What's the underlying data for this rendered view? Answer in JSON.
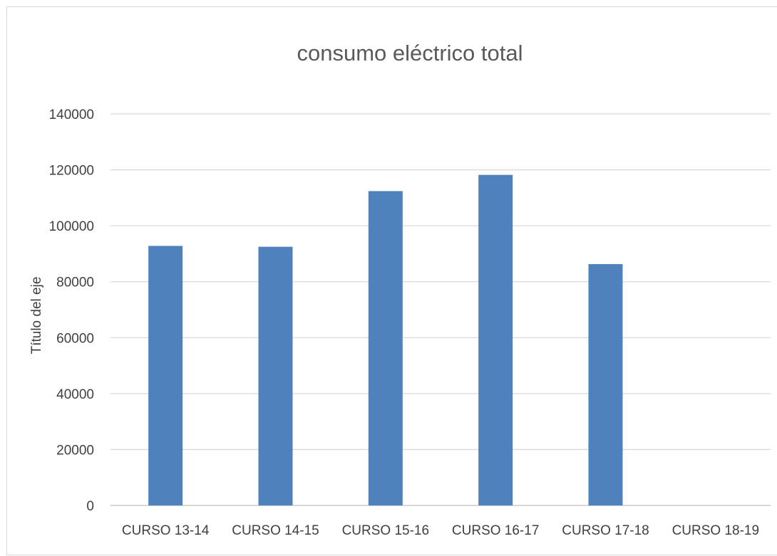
{
  "chart_data": {
    "type": "bar",
    "title": "consumo eléctrico total",
    "xlabel": "",
    "ylabel": "Título del eje",
    "categories": [
      "CURSO 13-14",
      "CURSO 14-15",
      "CURSO 15-16",
      "CURSO 16-17",
      "CURSO 17-18",
      "CURSO 18-19"
    ],
    "values": [
      92800,
      92500,
      112400,
      118200,
      86300,
      0
    ],
    "ylim": [
      0,
      140000
    ],
    "yticks": [
      "0",
      "20000",
      "40000",
      "60000",
      "80000",
      "100000",
      "120000",
      "140000"
    ],
    "grid": true,
    "legend": "none",
    "bar_color": "#4f81bd"
  }
}
